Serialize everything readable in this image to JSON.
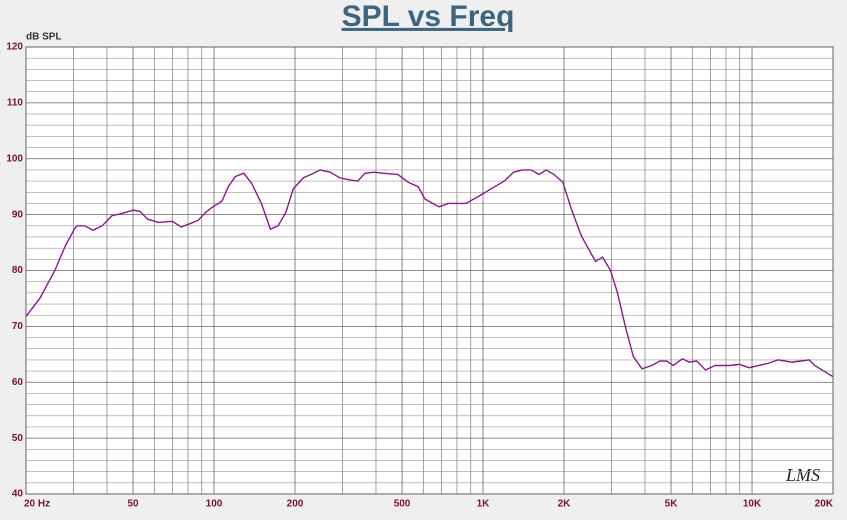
{
  "chart_data": {
    "type": "line",
    "title": "SPL vs Freq",
    "ylabel": "dB SPL",
    "annotation": "LMS",
    "xscale": "log",
    "grid": true,
    "xlim": [
      20,
      20000
    ],
    "ylim": [
      40,
      120
    ],
    "xticks": [
      {
        "value": 20,
        "label": "20 Hz"
      },
      50,
      100,
      200,
      500,
      {
        "value": 1000,
        "label": "1K"
      },
      {
        "value": 2000,
        "label": "2K"
      },
      {
        "value": 5000,
        "label": "5K"
      },
      {
        "value": 10000,
        "label": "10K"
      },
      {
        "value": 20000,
        "label": "20K"
      }
    ],
    "minor_xticks": [
      30,
      40,
      60,
      70,
      80,
      90,
      300,
      400,
      600,
      700,
      800,
      900,
      3000,
      4000,
      6000,
      7000,
      8000,
      9000
    ],
    "yticks": [
      40,
      50,
      60,
      70,
      80,
      90,
      100,
      110,
      120
    ],
    "minor_yticks": [
      42,
      44,
      46,
      48,
      52,
      54,
      56,
      58,
      62,
      64,
      66,
      68,
      72,
      74,
      76,
      78,
      82,
      84,
      86,
      88,
      92,
      94,
      96,
      98,
      102,
      104,
      106,
      108,
      112,
      114,
      116,
      118
    ],
    "series": [
      {
        "color": "#8b1a8b",
        "x": [
          20,
          22.5,
          25.6,
          28,
          30.4,
          31,
          33,
          35.5,
          38.4,
          41.7,
          45.4,
          50,
          53,
          56.6,
          62,
          70,
          75.6,
          81.6,
          87.4,
          93,
          99,
          107,
          113,
          120,
          129,
          138,
          150,
          162,
          173,
          185,
          197,
          215,
          230,
          248,
          270,
          293,
          320,
          342,
          364,
          394,
          427,
          482,
          527,
          574,
          608,
          686,
          745,
          864,
          973,
          1087,
          1200,
          1300,
          1404,
          1506,
          1618,
          1718,
          1835,
          1980,
          2130,
          2320,
          2620,
          2780,
          2980,
          3160,
          3380,
          3620,
          3900,
          4240,
          4540,
          4810,
          5100,
          5510,
          5840,
          6230,
          6710,
          7290,
          8260,
          8980,
          9760,
          10600,
          11500,
          12500,
          14100,
          16300,
          17100,
          20000
        ],
        "values": [
          71.8,
          75,
          80,
          84.4,
          87.6,
          88,
          88,
          87.2,
          88,
          89.8,
          90.2,
          90.8,
          90.6,
          89.2,
          88.6,
          88.8,
          87.8,
          88.4,
          89,
          90.4,
          91.4,
          92.4,
          95,
          96.8,
          97.4,
          95.6,
          92,
          87.4,
          88,
          90.4,
          94.6,
          96.6,
          97.2,
          98,
          97.6,
          96.6,
          96.2,
          96,
          97.4,
          97.6,
          97.4,
          97.2,
          95.8,
          95,
          92.8,
          91.4,
          92,
          92,
          93.4,
          94.8,
          96,
          97.6,
          98,
          98,
          97.2,
          98,
          97.2,
          95.8,
          91,
          86.2,
          81.6,
          82.4,
          80,
          76,
          70,
          64.6,
          62.4,
          63,
          63.8,
          63.8,
          63,
          64.2,
          63.6,
          63.8,
          62.2,
          63,
          63,
          63.2,
          62.6,
          63,
          63.4,
          64,
          63.6,
          64,
          63,
          61
        ]
      }
    ]
  }
}
